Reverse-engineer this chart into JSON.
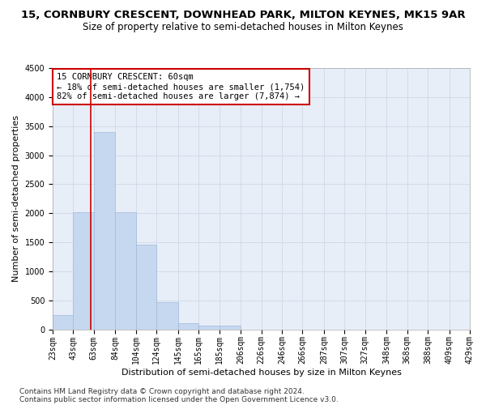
{
  "title_line1": "15, CORNBURY CRESCENT, DOWNHEAD PARK, MILTON KEYNES, MK15 9AR",
  "title_line2": "Size of property relative to semi-detached houses in Milton Keynes",
  "xlabel": "Distribution of semi-detached houses by size in Milton Keynes",
  "ylabel": "Number of semi-detached properties",
  "footer1": "Contains HM Land Registry data © Crown copyright and database right 2024.",
  "footer2": "Contains public sector information licensed under the Open Government Licence v3.0.",
  "annotation_title": "15 CORNBURY CRESCENT: 60sqm",
  "annotation_line1": "← 18% of semi-detached houses are smaller (1,754)",
  "annotation_line2": "82% of semi-detached houses are larger (7,874) →",
  "property_size": 60,
  "bar_left_edges": [
    23,
    43,
    63,
    84,
    104,
    124,
    145,
    165,
    185,
    206,
    226,
    246,
    266,
    287,
    307,
    327,
    348,
    368,
    388,
    409
  ],
  "bar_widths": [
    20,
    20,
    21,
    20,
    20,
    21,
    20,
    20,
    21,
    20,
    20,
    20,
    21,
    20,
    20,
    21,
    20,
    20,
    21,
    20
  ],
  "bar_heights": [
    250,
    2020,
    3400,
    2010,
    1460,
    470,
    110,
    70,
    60,
    0,
    0,
    0,
    0,
    0,
    0,
    0,
    0,
    0,
    0,
    0
  ],
  "bar_color": "#c5d8f0",
  "bar_edge_color": "#a0b8d8",
  "grid_color": "#d0d8e8",
  "bg_color": "#e8eef8",
  "vline_color": "#cc0000",
  "vline_x": 60,
  "annotation_box_color": "#ffffff",
  "annotation_box_edge_color": "#cc0000",
  "ylim": [
    0,
    4500
  ],
  "yticks": [
    0,
    500,
    1000,
    1500,
    2000,
    2500,
    3000,
    3500,
    4000,
    4500
  ],
  "tick_labels": [
    "23sqm",
    "43sqm",
    "63sqm",
    "84sqm",
    "104sqm",
    "124sqm",
    "145sqm",
    "165sqm",
    "185sqm",
    "206sqm",
    "226sqm",
    "246sqm",
    "266sqm",
    "287sqm",
    "307sqm",
    "327sqm",
    "348sqm",
    "368sqm",
    "388sqm",
    "409sqm",
    "429sqm"
  ],
  "title_fontsize": 9.5,
  "subtitle_fontsize": 8.5,
  "axis_label_fontsize": 8,
  "tick_fontsize": 7,
  "annotation_fontsize": 7.5,
  "footer_fontsize": 6.5
}
